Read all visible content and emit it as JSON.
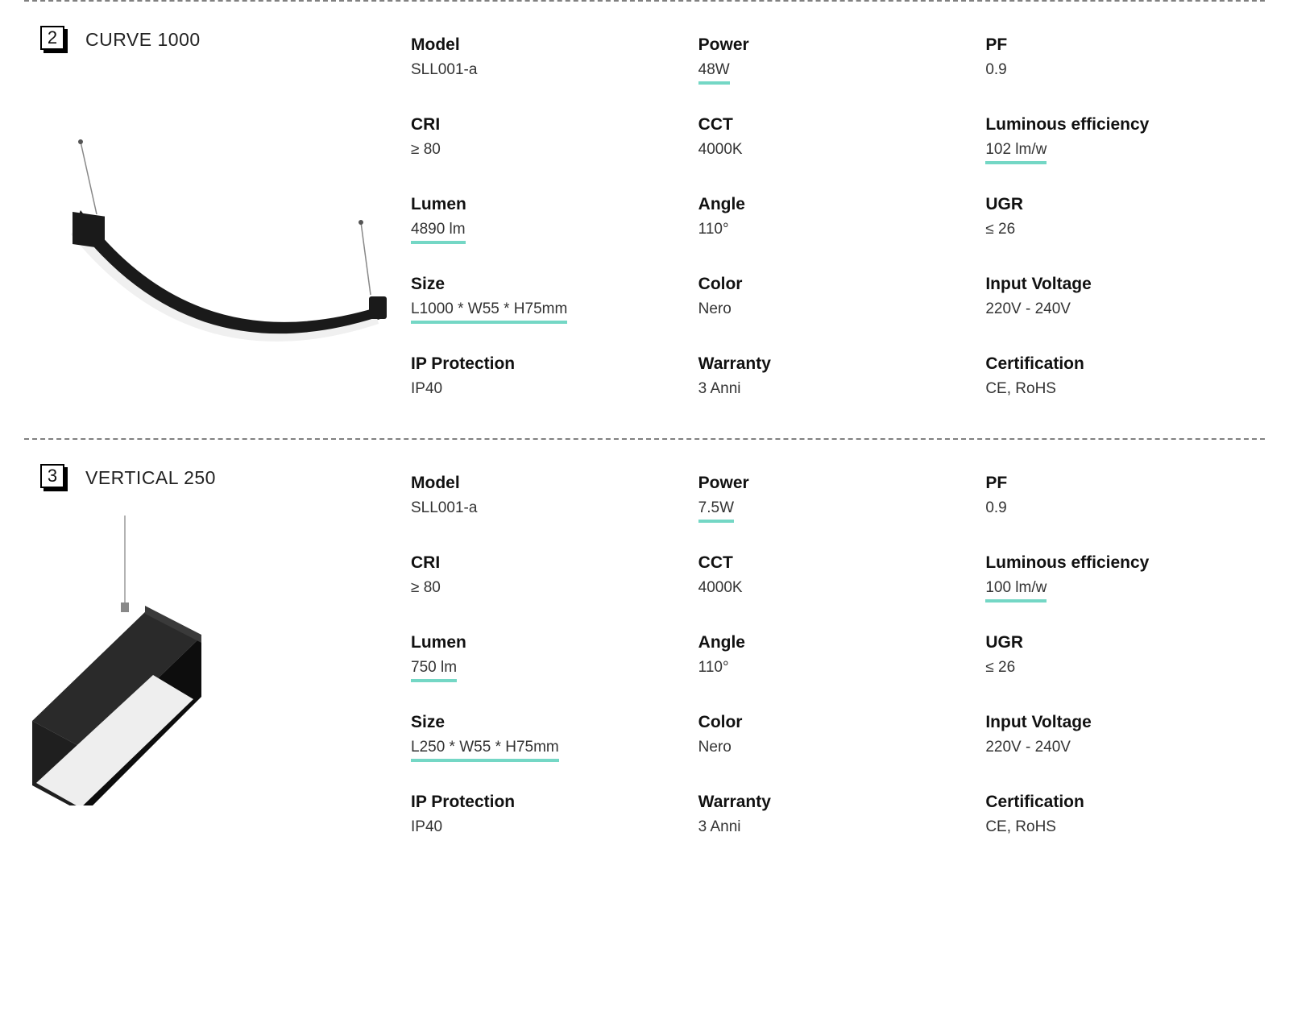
{
  "accent_color": "#74D7C5",
  "products": [
    {
      "number": "2",
      "title": "CURVE 1000",
      "specs": [
        {
          "label": "Model",
          "value": "SLL001-a",
          "hl": false
        },
        {
          "label": "Power",
          "value": "48W",
          "hl": true
        },
        {
          "label": "PF",
          "value": "0.9",
          "hl": false
        },
        {
          "label": "CRI",
          "value": "≥ 80",
          "hl": false
        },
        {
          "label": "CCT",
          "value": "4000K",
          "hl": false
        },
        {
          "label": "Luminous efficiency",
          "value": "102 lm/w",
          "hl": true
        },
        {
          "label": "Lumen",
          "value": "4890 lm",
          "hl": true
        },
        {
          "label": "Angle",
          "value": "110°",
          "hl": false
        },
        {
          "label": "UGR",
          "value": "≤ 26",
          "hl": false
        },
        {
          "label": "Size",
          "value": "L1000 * W55 * H75mm",
          "hl": true
        },
        {
          "label": "Color",
          "value": "Nero",
          "hl": false
        },
        {
          "label": "Input Voltage",
          "value": "220V - 240V",
          "hl": false
        },
        {
          "label": "IP Protection",
          "value": "IP40",
          "hl": false
        },
        {
          "label": "Warranty",
          "value": "3 Anni",
          "hl": false
        },
        {
          "label": "Certification",
          "value": "CE, RoHS",
          "hl": false
        }
      ]
    },
    {
      "number": "3",
      "title": "VERTICAL 250",
      "specs": [
        {
          "label": "Model",
          "value": "SLL001-a",
          "hl": false
        },
        {
          "label": "Power",
          "value": "7.5W",
          "hl": true
        },
        {
          "label": "PF",
          "value": "0.9",
          "hl": false
        },
        {
          "label": "CRI",
          "value": "≥ 80",
          "hl": false
        },
        {
          "label": "CCT",
          "value": "4000K",
          "hl": false
        },
        {
          "label": "Luminous efficiency",
          "value": "100 lm/w",
          "hl": true
        },
        {
          "label": "Lumen",
          "value": "750 lm",
          "hl": true
        },
        {
          "label": "Angle",
          "value": "110°",
          "hl": false
        },
        {
          "label": "UGR",
          "value": "≤ 26",
          "hl": false
        },
        {
          "label": "Size",
          "value": "L250 * W55 * H75mm",
          "hl": true
        },
        {
          "label": "Color",
          "value": "Nero",
          "hl": false
        },
        {
          "label": "Input Voltage",
          "value": "220V - 240V",
          "hl": false
        },
        {
          "label": "IP Protection",
          "value": "IP40",
          "hl": false
        },
        {
          "label": "Warranty",
          "value": "3 Anni",
          "hl": false
        },
        {
          "label": "Certification",
          "value": "CE, RoHS",
          "hl": false
        }
      ]
    }
  ]
}
